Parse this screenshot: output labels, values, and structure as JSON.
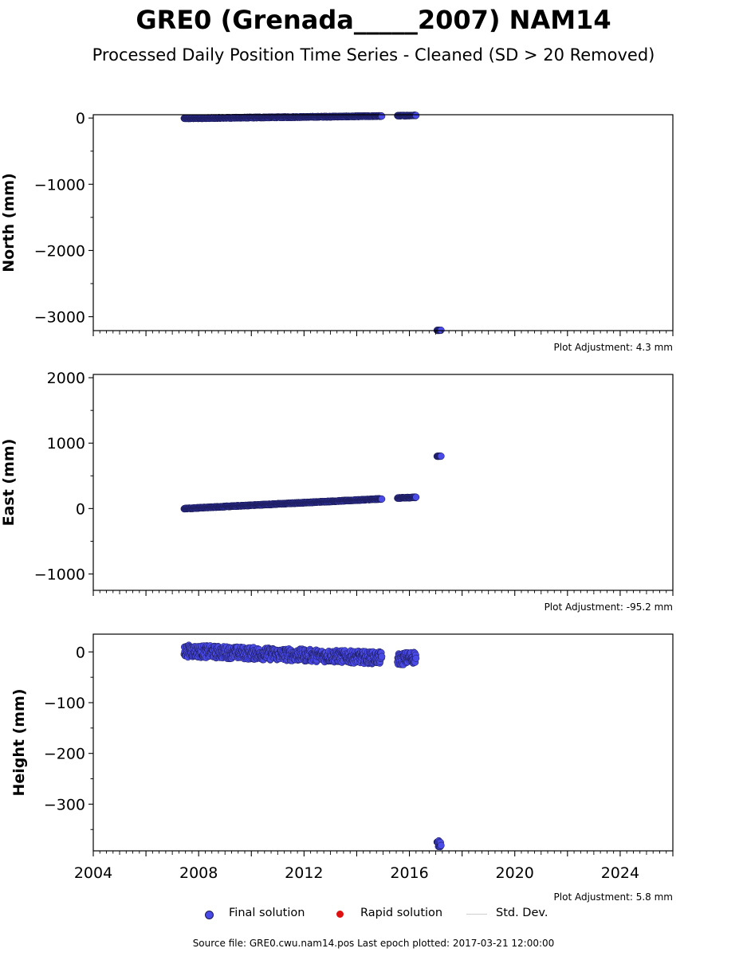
{
  "title": "GRE0 (Grenada_____2007) NAM14",
  "subtitle": "Processed Daily Position Time Series - Cleaned (SD > 20 Removed)",
  "colors": {
    "final": "#4a4ae6",
    "final_edge": "#1a1a55",
    "rapid": "#e01010",
    "stddev": "#cfcfcf"
  },
  "legend": {
    "final": "Final solution",
    "rapid": "Rapid solution",
    "stddev": "Std. Dev."
  },
  "footer": "Source file: GRE0.cwu.nam14.pos  Last epoch plotted: 2017-03-21 12:00:00",
  "chart_data": [
    {
      "type": "scatter",
      "ylabel": "North (mm)",
      "xlim": [
        2004,
        2026
      ],
      "ylim": [
        -3210,
        50
      ],
      "yticks": [
        0,
        -1000,
        -2000,
        -3000
      ],
      "ytick_labels": [
        "0",
        "−1000",
        "−2000",
        "−3000"
      ],
      "adjustment": "Plot Adjustment: 4.3 mm",
      "series": [
        {
          "segments": [
            {
              "x": [
                2007.45,
                2014.95
              ],
              "y": [
                -5,
                30
              ],
              "spread": 6
            },
            {
              "x": [
                2015.55,
                2016.25
              ],
              "y": [
                35,
                40
              ],
              "spread": 5
            },
            {
              "x": [
                2017.05,
                2017.2
              ],
              "y": [
                -3205,
                -3205
              ],
              "spread": 2
            }
          ]
        }
      ]
    },
    {
      "type": "scatter",
      "ylabel": "East (mm)",
      "xlim": [
        2004,
        2026
      ],
      "ylim": [
        -1250,
        2050
      ],
      "yticks": [
        2000,
        1000,
        0,
        -1000
      ],
      "ytick_labels": [
        "2000",
        "1000",
        "0",
        "−1000"
      ],
      "adjustment": "Plot Adjustment: -95.2 mm",
      "series": [
        {
          "segments": [
            {
              "x": [
                2007.45,
                2014.95
              ],
              "y": [
                0,
                148
              ],
              "spread": 6
            },
            {
              "x": [
                2015.55,
                2016.25
              ],
              "y": [
                160,
                172
              ],
              "spread": 6
            },
            {
              "x": [
                2017.05,
                2017.2
              ],
              "y": [
                800,
                800
              ],
              "spread": 2
            }
          ]
        }
      ]
    },
    {
      "type": "scatter",
      "ylabel": "Height (mm)",
      "xlim": [
        2004,
        2026
      ],
      "ylim": [
        -392,
        35
      ],
      "yticks": [
        0,
        -100,
        -200,
        -300
      ],
      "ytick_labels": [
        "0",
        "−100",
        "−200",
        "−300"
      ],
      "xticks": [
        2004,
        2008,
        2012,
        2016,
        2020,
        2024
      ],
      "xtick_labels": [
        "2004",
        "2008",
        "2012",
        "2016",
        "2020",
        "2024"
      ],
      "adjustment": "Plot Adjustment: 5.8 mm",
      "series": [
        {
          "segments": [
            {
              "x": [
                2007.45,
                2014.95
              ],
              "y": [
                2,
                -12
              ],
              "spread": 12
            },
            {
              "x": [
                2015.55,
                2016.25
              ],
              "y": [
                -15,
                -10
              ],
              "spread": 12
            },
            {
              "x": [
                2017.05,
                2017.2
              ],
              "y": [
                -378,
                -378
              ],
              "spread": 6
            }
          ]
        }
      ]
    }
  ]
}
